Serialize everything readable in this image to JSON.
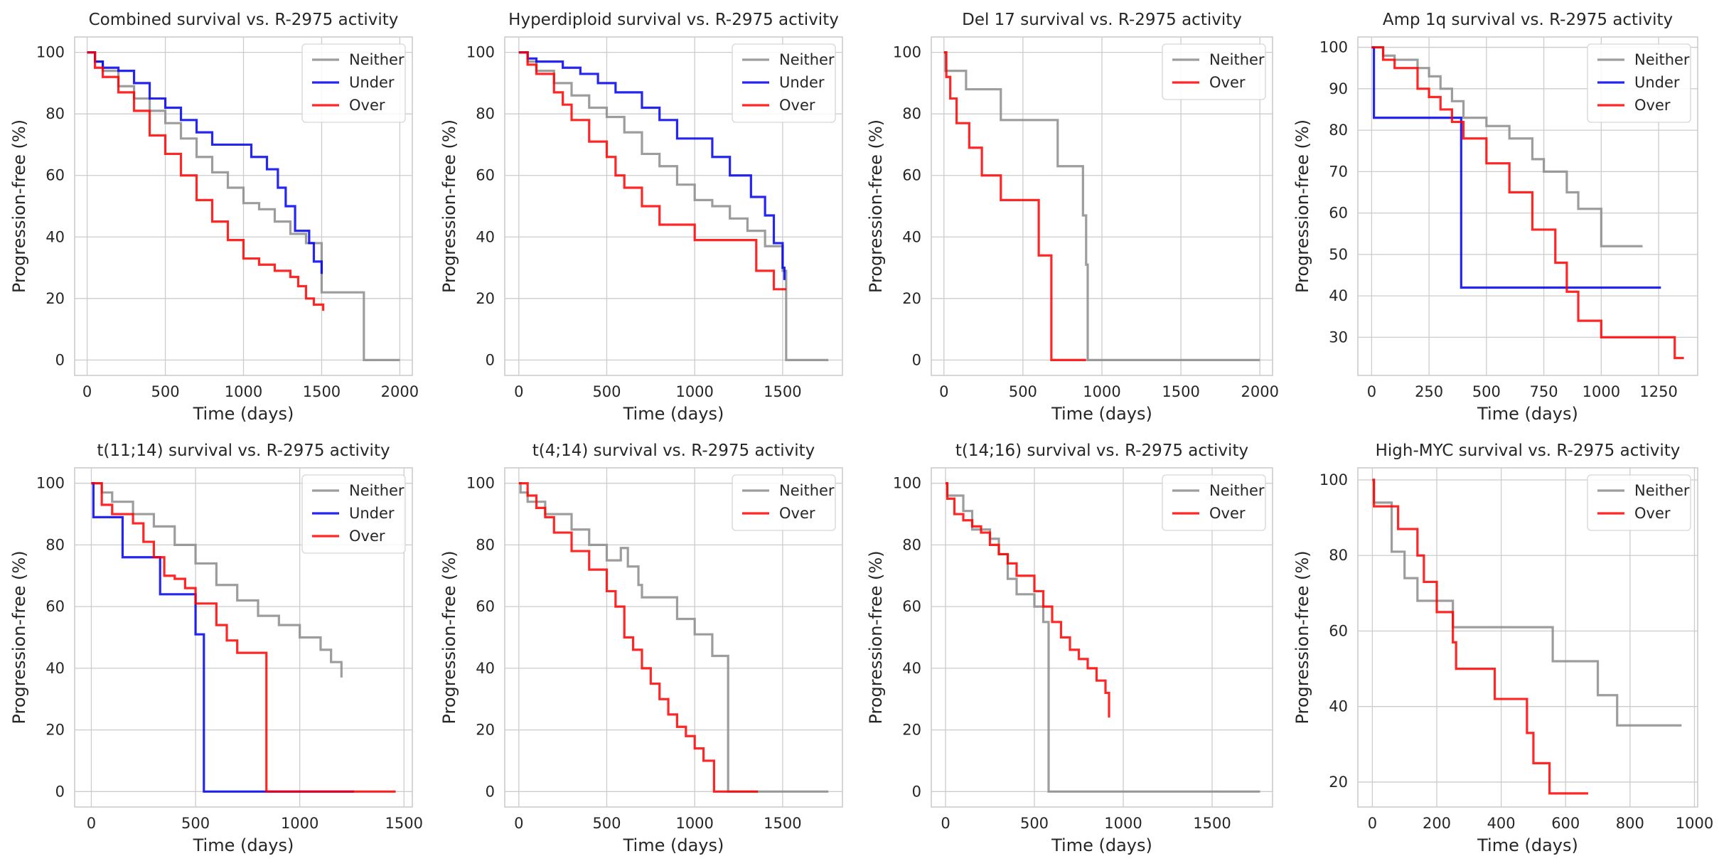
{
  "colors": {
    "Neither": "#8c8c8c",
    "Under": "#0000ee",
    "Over": "#ff0000",
    "grid": "#cccccc",
    "frame": "#cccccc"
  },
  "chart_data": [
    {
      "type": "line",
      "title": "Combined survival vs. R-2975 activity",
      "xlabel": "Time (days)",
      "ylabel": "Progression-free (%)",
      "xlim": [
        -80,
        2080
      ],
      "ylim": [
        -5,
        105
      ],
      "xticks": [
        0,
        500,
        1000,
        1500,
        2000
      ],
      "yticks": [
        0,
        20,
        40,
        60,
        80,
        100
      ],
      "legend_position": "upper right",
      "grid": true,
      "series": [
        {
          "name": "Neither",
          "x": [
            0,
            50,
            100,
            200,
            300,
            400,
            500,
            600,
            700,
            800,
            900,
            1000,
            1100,
            1200,
            1300,
            1400,
            1500,
            1760,
            1770,
            2000
          ],
          "y": [
            100,
            97,
            94,
            89,
            85,
            81,
            77,
            72,
            66,
            61,
            56,
            51,
            49,
            45,
            41,
            38,
            22,
            22,
            0,
            0
          ]
        },
        {
          "name": "Under",
          "x": [
            0,
            50,
            100,
            200,
            300,
            400,
            500,
            600,
            700,
            800,
            950,
            1050,
            1150,
            1220,
            1270,
            1330,
            1420,
            1450,
            1500
          ],
          "y": [
            100,
            97,
            95,
            94,
            90,
            85,
            82,
            78,
            74,
            70,
            70,
            66,
            62,
            56,
            50,
            42,
            38,
            32,
            28
          ]
        },
        {
          "name": "Over",
          "x": [
            0,
            50,
            100,
            200,
            300,
            400,
            500,
            600,
            700,
            800,
            900,
            1000,
            1100,
            1200,
            1300,
            1350,
            1400,
            1450,
            1510
          ],
          "y": [
            100,
            95,
            92,
            87,
            81,
            73,
            67,
            60,
            52,
            45,
            39,
            33,
            31,
            29,
            27,
            24,
            20,
            18,
            16
          ]
        }
      ]
    },
    {
      "type": "line",
      "title": "Hyperdiploid survival vs. R-2975 activity",
      "xlabel": "Time (days)",
      "ylabel": "Progression-free (%)",
      "xlim": [
        -80,
        1840
      ],
      "ylim": [
        -5,
        105
      ],
      "xticks": [
        0,
        500,
        1000,
        1500
      ],
      "yticks": [
        0,
        20,
        40,
        60,
        80,
        100
      ],
      "legend_position": "upper right",
      "grid": true,
      "series": [
        {
          "name": "Neither",
          "x": [
            0,
            50,
            100,
            200,
            300,
            400,
            500,
            600,
            700,
            800,
            900,
            1000,
            1100,
            1200,
            1300,
            1400,
            1500,
            1520,
            1760
          ],
          "y": [
            100,
            97,
            94,
            90,
            86,
            82,
            79,
            74,
            67,
            63,
            57,
            52,
            50,
            46,
            42,
            37,
            29,
            0,
            0
          ]
        },
        {
          "name": "Under",
          "x": [
            0,
            50,
            100,
            250,
            350,
            450,
            550,
            700,
            800,
            900,
            1000,
            1100,
            1200,
            1320,
            1400,
            1450,
            1500,
            1510
          ],
          "y": [
            100,
            98,
            97,
            95,
            93,
            90,
            87,
            82,
            78,
            72,
            72,
            66,
            60,
            53,
            47,
            38,
            30,
            26
          ]
        },
        {
          "name": "Over",
          "x": [
            0,
            50,
            100,
            200,
            250,
            300,
            400,
            500,
            550,
            600,
            700,
            800,
            1000,
            1120,
            1350,
            1400,
            1450,
            1520
          ],
          "y": [
            100,
            96,
            93,
            87,
            83,
            78,
            71,
            66,
            60,
            56,
            50,
            44,
            39,
            39,
            29,
            29,
            23,
            23
          ]
        }
      ]
    },
    {
      "type": "line",
      "title": "Del 17 survival vs. R-2975 activity",
      "xlabel": "Time (days)",
      "ylabel": "Progression-free (%)",
      "xlim": [
        -80,
        2080
      ],
      "ylim": [
        -5,
        105
      ],
      "xticks": [
        0,
        500,
        1000,
        1500,
        2000
      ],
      "yticks": [
        0,
        20,
        40,
        60,
        80,
        100
      ],
      "legend_position": "upper right",
      "grid": true,
      "series": [
        {
          "name": "Neither",
          "x": [
            0,
            10,
            140,
            360,
            720,
            880,
            900,
            910,
            2000
          ],
          "y": [
            100,
            94,
            88,
            78,
            63,
            47,
            31,
            0,
            0
          ]
        },
        {
          "name": "Over",
          "x": [
            0,
            15,
            40,
            80,
            160,
            240,
            360,
            400,
            520,
            600,
            680,
            700,
            900
          ],
          "y": [
            100,
            92,
            85,
            77,
            69,
            60,
            52,
            52,
            52,
            34,
            0,
            0,
            0
          ]
        }
      ]
    },
    {
      "type": "line",
      "title": "Amp 1q survival vs. R-2975 activity",
      "xlabel": "Time (days)",
      "ylabel": "Progression-free (%)",
      "xlim": [
        -60,
        1420
      ],
      "ylim": [
        20.8,
        102.5
      ],
      "xticks": [
        0,
        250,
        500,
        750,
        1000,
        1250
      ],
      "yticks": [
        30,
        40,
        50,
        60,
        70,
        80,
        90,
        100
      ],
      "legend_position": "upper right",
      "grid": true,
      "series": [
        {
          "name": "Neither",
          "x": [
            0,
            50,
            100,
            200,
            250,
            300,
            350,
            400,
            500,
            600,
            700,
            750,
            850,
            900,
            1000,
            1180
          ],
          "y": [
            100,
            98,
            97,
            95,
            93,
            90,
            87,
            83,
            81,
            78,
            73,
            70,
            65,
            61,
            52,
            52
          ]
        },
        {
          "name": "Under",
          "x": [
            0,
            10,
            380,
            390,
            1260
          ],
          "y": [
            100,
            83,
            83,
            42,
            42
          ]
        },
        {
          "name": "Over",
          "x": [
            0,
            50,
            100,
            200,
            250,
            300,
            350,
            400,
            500,
            600,
            700,
            800,
            850,
            900,
            1000,
            1100,
            1300,
            1320,
            1360
          ],
          "y": [
            100,
            97,
            95,
            90,
            88,
            85,
            82,
            78,
            72,
            65,
            56,
            48,
            41,
            34,
            30,
            30,
            30,
            25,
            25
          ]
        }
      ]
    },
    {
      "type": "line",
      "title": "t(11;14) survival vs. R-2975 activity",
      "xlabel": "Time (days)",
      "ylabel": "Progression-free (%)",
      "xlim": [
        -80,
        1540
      ],
      "ylim": [
        -5,
        105
      ],
      "xticks": [
        0,
        500,
        1000,
        1500
      ],
      "yticks": [
        0,
        20,
        40,
        60,
        80,
        100
      ],
      "legend_position": "upper right",
      "grid": true,
      "series": [
        {
          "name": "Neither",
          "x": [
            0,
            50,
            100,
            200,
            300,
            400,
            500,
            600,
            700,
            800,
            900,
            1000,
            1050,
            1100,
            1150,
            1200
          ],
          "y": [
            100,
            97,
            94,
            90,
            86,
            80,
            74,
            67,
            62,
            57,
            54,
            50,
            50,
            46,
            42,
            37
          ]
        },
        {
          "name": "Under",
          "x": [
            0,
            10,
            150,
            330,
            500,
            540,
            560,
            1260
          ],
          "y": [
            100,
            89,
            76,
            64,
            51,
            0,
            0,
            0
          ]
        },
        {
          "name": "Over",
          "x": [
            0,
            50,
            100,
            200,
            250,
            300,
            350,
            400,
            450,
            500,
            600,
            650,
            700,
            830,
            840,
            1460
          ],
          "y": [
            100,
            93,
            90,
            87,
            81,
            76,
            70,
            69,
            66,
            61,
            54,
            49,
            45,
            45,
            0,
            0
          ]
        }
      ]
    },
    {
      "type": "line",
      "title": "t(4;14) survival vs. R-2975 activity",
      "xlabel": "Time (days)",
      "ylabel": "Progression-free (%)",
      "xlim": [
        -80,
        1840
      ],
      "ylim": [
        -5,
        105
      ],
      "xticks": [
        0,
        500,
        1000,
        1500
      ],
      "yticks": [
        0,
        20,
        40,
        60,
        80,
        100
      ],
      "legend_position": "upper right",
      "grid": true,
      "series": [
        {
          "name": "Neither",
          "x": [
            0,
            10,
            50,
            150,
            300,
            400,
            500,
            580,
            620,
            680,
            700,
            800,
            900,
            1000,
            1100,
            1180,
            1190,
            1760
          ],
          "y": [
            100,
            97,
            94,
            90,
            85,
            80,
            75,
            79,
            73,
            67,
            63,
            63,
            56,
            51,
            44,
            44,
            0,
            0
          ]
        },
        {
          "name": "Over",
          "x": [
            0,
            50,
            100,
            150,
            200,
            300,
            400,
            500,
            550,
            600,
            650,
            700,
            750,
            800,
            850,
            900,
            950,
            1000,
            1050,
            1110,
            1120,
            1360
          ],
          "y": [
            100,
            96,
            92,
            89,
            84,
            78,
            72,
            65,
            60,
            50,
            46,
            40,
            35,
            30,
            25,
            21,
            18,
            14,
            10,
            0,
            0,
            0
          ]
        }
      ]
    },
    {
      "type": "line",
      "title": "t(14;16) survival vs. R-2975 activity",
      "xlabel": "Time (days)",
      "ylabel": "Progression-free (%)",
      "xlim": [
        -80,
        1840
      ],
      "ylim": [
        -5,
        105
      ],
      "xticks": [
        0,
        500,
        1000,
        1500
      ],
      "yticks": [
        0,
        20,
        40,
        60,
        80,
        100
      ],
      "legend_position": "upper right",
      "grid": true,
      "series": [
        {
          "name": "Neither",
          "x": [
            0,
            10,
            100,
            150,
            250,
            300,
            350,
            400,
            500,
            550,
            580,
            600,
            1770
          ],
          "y": [
            100,
            96,
            91,
            85,
            82,
            77,
            69,
            64,
            60,
            55,
            0,
            0,
            0
          ]
        },
        {
          "name": "Over",
          "x": [
            0,
            10,
            50,
            100,
            150,
            200,
            250,
            300,
            350,
            400,
            500,
            550,
            600,
            650,
            700,
            750,
            800,
            850,
            900,
            920
          ],
          "y": [
            100,
            95,
            90,
            88,
            86,
            84,
            80,
            77,
            74,
            70,
            65,
            60,
            55,
            50,
            46,
            43,
            40,
            36,
            32,
            24
          ]
        }
      ]
    },
    {
      "type": "line",
      "title": "High-MYC survival vs. R-2975 activity",
      "xlabel": "Time (days)",
      "ylabel": "Progression-free (%)",
      "xlim": [
        -45,
        1010
      ],
      "ylim": [
        13.4,
        103.2
      ],
      "xticks": [
        0,
        200,
        400,
        600,
        800,
        1000
      ],
      "yticks": [
        20,
        40,
        60,
        80,
        100
      ],
      "legend_position": "upper right",
      "grid": true,
      "series": [
        {
          "name": "Neither",
          "x": [
            0,
            5,
            60,
            100,
            140,
            160,
            200,
            250,
            300,
            400,
            460,
            500,
            560,
            600,
            700,
            760,
            800,
            960
          ],
          "y": [
            100,
            94,
            81,
            74,
            68,
            68,
            68,
            61,
            61,
            61,
            61,
            61,
            52,
            52,
            43,
            35,
            35,
            35
          ]
        },
        {
          "name": "Over",
          "x": [
            0,
            5,
            80,
            140,
            160,
            200,
            250,
            260,
            300,
            350,
            380,
            450,
            480,
            500,
            550,
            600,
            670
          ],
          "y": [
            100,
            93,
            87,
            80,
            73,
            65,
            57,
            50,
            50,
            50,
            42,
            42,
            33,
            25,
            17,
            17,
            17
          ]
        }
      ]
    }
  ]
}
